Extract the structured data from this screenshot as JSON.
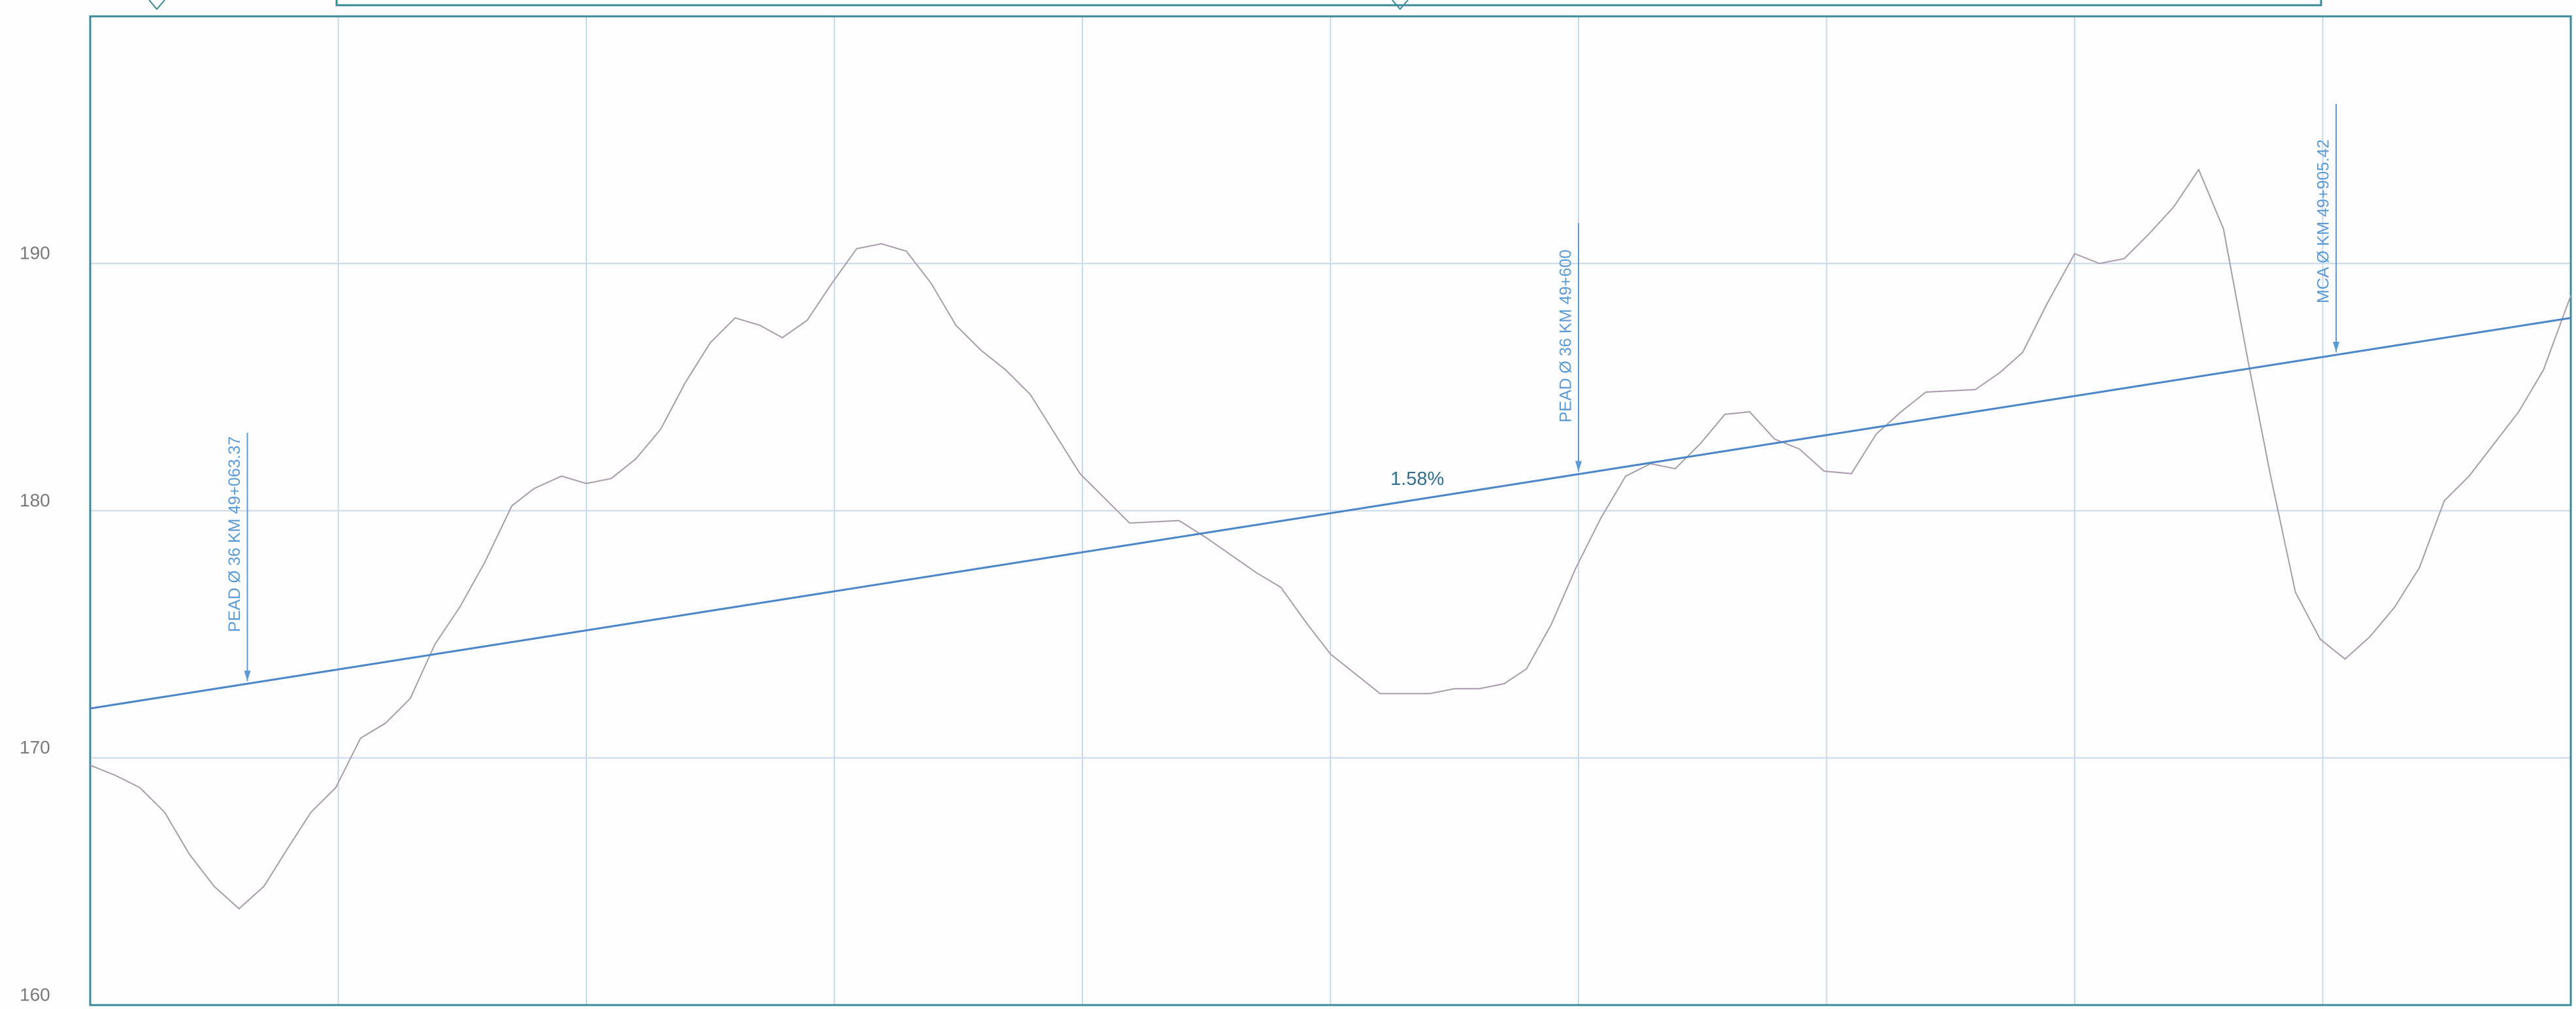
{
  "chart_data": {
    "type": "line",
    "xlim": [
      49000,
      50000
    ],
    "xticks": [
      49000,
      49100,
      49200,
      49300,
      49400,
      49500,
      49600,
      49700,
      49800,
      49900,
      50000
    ],
    "ylim": [
      160,
      200
    ],
    "yticks": [
      160,
      170,
      180,
      190
    ],
    "grid": true,
    "series": [
      {
        "color": "#a99bab",
        "x": [
          49000,
          49010,
          49020,
          49030,
          49040,
          49050,
          49060,
          49070,
          49080,
          49089,
          49099,
          49109,
          49119,
          49129,
          49139,
          49149,
          49159,
          49170,
          49179,
          49190,
          49200,
          49210,
          49220,
          49230,
          49240,
          49250,
          49260,
          49270,
          49279,
          49289,
          49299,
          49309,
          49319,
          49329,
          49339,
          49349,
          49359,
          49369,
          49379,
          49389,
          49399,
          49409,
          49419,
          49439,
          49450,
          49460,
          49470,
          49480,
          49490,
          49500,
          49510,
          49520,
          49540,
          49550,
          49560,
          49570,
          49579,
          49589,
          49599,
          49609,
          49619,
          49629,
          49639,
          49649,
          49659,
          49669,
          49679,
          49689,
          49699,
          49710,
          49720,
          49730,
          49740,
          49760,
          49770,
          49779,
          49789,
          49800,
          49810,
          49820,
          49830,
          49840,
          49850,
          49860,
          49870,
          49879,
          49889,
          49899,
          49909,
          49919,
          49929,
          49939,
          49949,
          49959,
          49969,
          49979,
          49989,
          50000
        ],
        "values": [
          169.7,
          169.3,
          168.8,
          167.8,
          166.1,
          164.8,
          163.9,
          164.8,
          166.4,
          167.8,
          168.8,
          170.8,
          171.4,
          172.4,
          174.6,
          176.1,
          177.9,
          180.2,
          180.9,
          181.4,
          181.1,
          181.3,
          182.1,
          183.3,
          185.2,
          186.8,
          187.8,
          187.5,
          187.0,
          187.7,
          189.2,
          190.6,
          190.8,
          190.5,
          189.2,
          187.5,
          186.5,
          185.7,
          184.7,
          183.1,
          181.5,
          180.5,
          179.5,
          179.6,
          178.9,
          178.2,
          177.5,
          176.9,
          175.5,
          174.2,
          173.4,
          172.6,
          172.6,
          172.8,
          172.8,
          173.0,
          173.6,
          175.4,
          177.7,
          179.7,
          181.4,
          181.9,
          181.7,
          182.7,
          183.9,
          184.0,
          182.9,
          182.5,
          181.6,
          181.5,
          183.1,
          184.0,
          184.8,
          184.9,
          185.6,
          186.4,
          188.4,
          190.4,
          190.0,
          190.2,
          191.2,
          192.3,
          193.8,
          191.4,
          186.0,
          181.4,
          176.7,
          174.8,
          174.0,
          174.9,
          176.1,
          177.7,
          180.4,
          181.4,
          182.7,
          184.0,
          185.7,
          188.7
        ]
      },
      {
        "color": "#4a86c8",
        "x": [
          49000,
          50000
        ],
        "values": [
          172.0,
          187.8
        ]
      }
    ],
    "grade_label": "1.58%",
    "annotations": [
      {
        "x": 49063.37,
        "text": "PEAD  Ø  36  KM  49+063.37"
      },
      {
        "x": 49600,
        "text": "PEAD  Ø  36  KM  49+600"
      },
      {
        "x": 49905.42,
        "text": "MCA  Ø   KM  49+905.42"
      }
    ]
  }
}
